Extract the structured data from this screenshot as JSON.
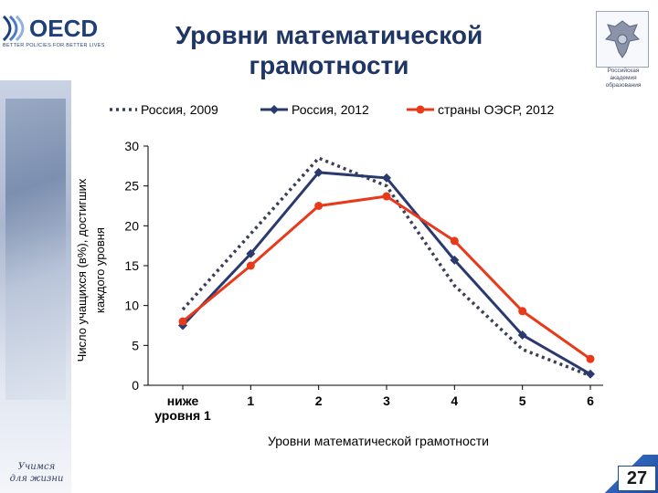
{
  "logo": {
    "brand": "OECD",
    "tagline": "BETTER POLICIES FOR BETTER LIVES"
  },
  "page_title": [
    "Уровни математической",
    "грамотности"
  ],
  "emblem_caption": [
    "Российская",
    "академия",
    "образования"
  ],
  "left_caption": [
    "Учимся",
    "для жизни"
  ],
  "page_number": "27",
  "colors": {
    "russia_2009": "#3a3f55",
    "russia_2012": "#2b3a6e",
    "oecd_2012": "#e8391b",
    "title": "#1f3564"
  },
  "chart_data": {
    "type": "line",
    "title": "",
    "xlabel": "Уровни математической грамотности",
    "ylabel": [
      "Число учащихся (в%), достигших",
      "каждого уровня"
    ],
    "categories": [
      [
        "ниже",
        "уровня 1"
      ],
      [
        "1"
      ],
      [
        "2"
      ],
      [
        "3"
      ],
      [
        "4"
      ],
      [
        "5"
      ],
      [
        "6"
      ]
    ],
    "ylim": [
      0,
      30
    ],
    "yticks": [
      "0",
      "5",
      "10",
      "15",
      "20",
      "25",
      "30"
    ],
    "legend_position": "top",
    "series": [
      {
        "name": "Россия, 2009",
        "style": "dotted",
        "values": [
          9.5,
          19.0,
          28.5,
          25.0,
          12.5,
          4.5,
          1.2
        ]
      },
      {
        "name": "Россия, 2012",
        "style": "solid-diamond",
        "values": [
          7.5,
          16.5,
          26.7,
          26.0,
          15.7,
          6.3,
          1.4
        ]
      },
      {
        "name": "страны ОЭСР, 2012",
        "style": "solid-circle",
        "values": [
          8.0,
          15.0,
          22.5,
          23.7,
          18.1,
          9.3,
          3.3
        ]
      }
    ]
  }
}
